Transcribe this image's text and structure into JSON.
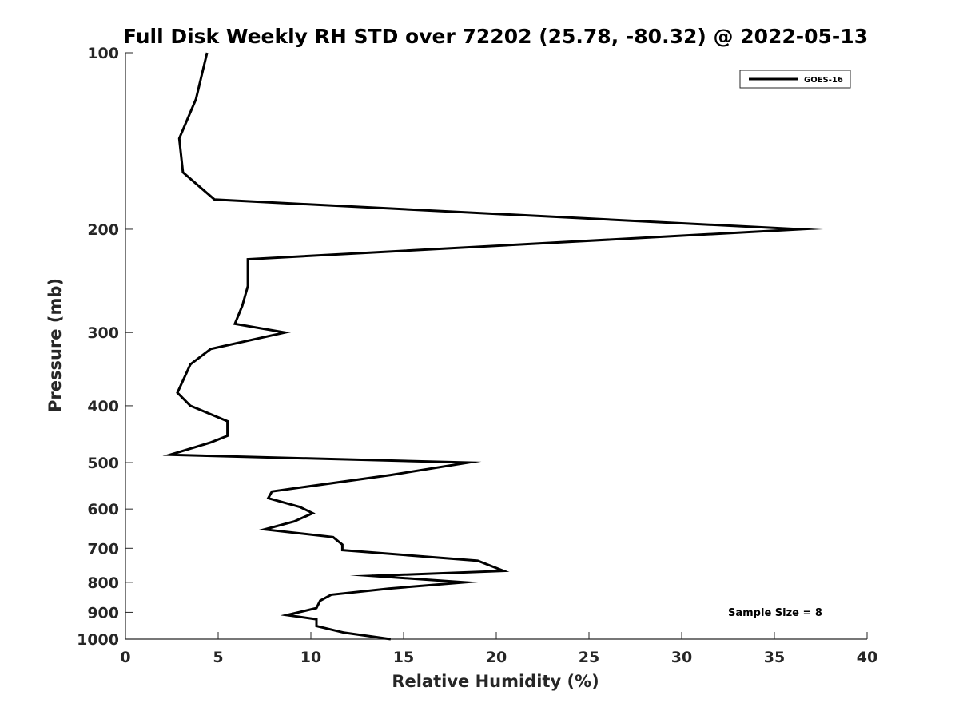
{
  "chart_data": {
    "type": "line",
    "title": "Full Disk Weekly RH STD over 72202 (25.78, -80.32) @ 2022-05-13",
    "xlabel": "Relative Humidity (%)",
    "ylabel": "Pressure (mb)",
    "xlim": [
      0,
      40
    ],
    "ylim": [
      100,
      1000
    ],
    "y_scale": "log",
    "y_reversed": true,
    "grid": false,
    "legend_position": "top-right",
    "x_ticks": [
      "0",
      "5",
      "10",
      "15",
      "20",
      "25",
      "30",
      "35",
      "40"
    ],
    "y_ticks": [
      "100",
      "200",
      "300",
      "400",
      "500",
      "600",
      "700",
      "800",
      "900",
      "1000"
    ],
    "series": [
      {
        "name": "GOES-16",
        "color": "#000000",
        "points": [
          [
            4.4,
            100
          ],
          [
            3.8,
            120
          ],
          [
            2.9,
            140
          ],
          [
            3.1,
            160
          ],
          [
            4.8,
            178
          ],
          [
            36.4,
            200
          ],
          [
            6.6,
            225
          ],
          [
            6.6,
            250
          ],
          [
            6.3,
            270
          ],
          [
            5.9,
            290
          ],
          [
            8.6,
            300
          ],
          [
            4.6,
            320
          ],
          [
            3.5,
            340
          ],
          [
            2.8,
            380
          ],
          [
            3.5,
            400
          ],
          [
            5.5,
            425
          ],
          [
            5.5,
            450
          ],
          [
            4.6,
            462
          ],
          [
            2.4,
            485
          ],
          [
            18.5,
            500
          ],
          [
            14.3,
            525
          ],
          [
            7.9,
            560
          ],
          [
            7.7,
            575
          ],
          [
            9.4,
            595
          ],
          [
            10.1,
            610
          ],
          [
            9.1,
            630
          ],
          [
            7.5,
            650
          ],
          [
            11.2,
            670
          ],
          [
            11.7,
            690
          ],
          [
            11.7,
            705
          ],
          [
            19.0,
            735
          ],
          [
            20.4,
            765
          ],
          [
            13.3,
            780
          ],
          [
            18.3,
            800
          ],
          [
            14.2,
            820
          ],
          [
            11.1,
            840
          ],
          [
            10.5,
            860
          ],
          [
            10.3,
            885
          ],
          [
            8.7,
            910
          ],
          [
            10.3,
            925
          ],
          [
            10.3,
            950
          ],
          [
            11.8,
            975
          ],
          [
            14.3,
            1000
          ]
        ]
      }
    ],
    "annotation": "Sample Size = 8"
  }
}
